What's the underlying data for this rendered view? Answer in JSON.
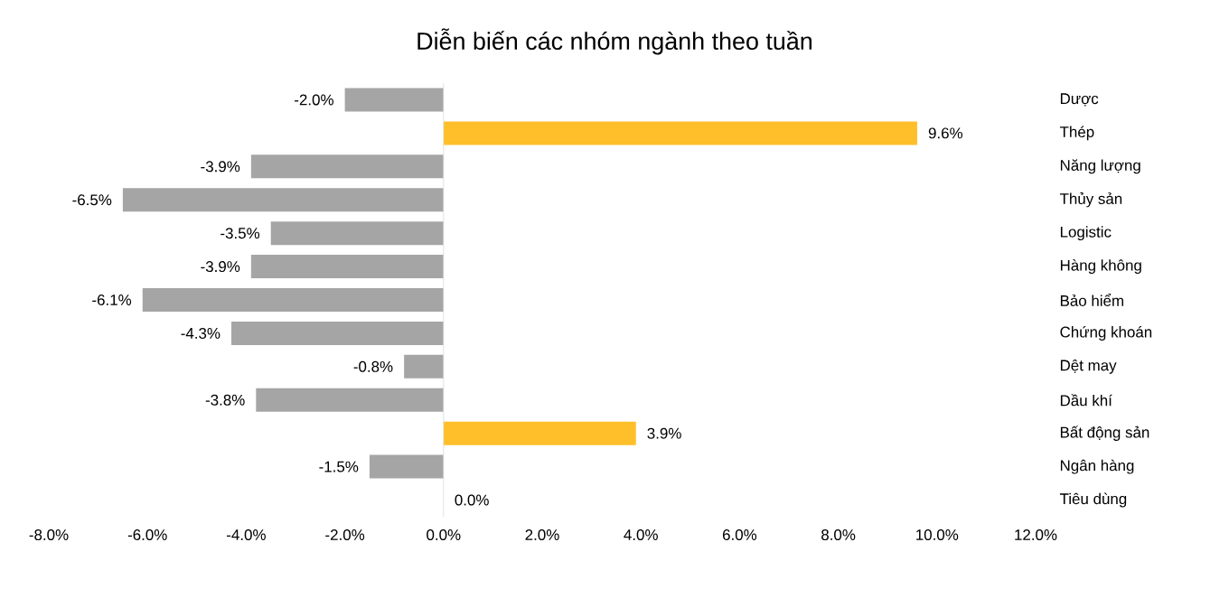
{
  "chart_data": {
    "type": "bar",
    "orientation": "horizontal",
    "title": "Diễn biến các nhóm ngành theo tuần",
    "categories": [
      "Dược",
      "Thép",
      "Năng lượng",
      "Thủy sản",
      "Logistic",
      "Hàng không",
      "Bảo hiểm",
      "Chứng khoán",
      "Dệt may",
      "Dầu khí",
      "Bất động sản",
      "Ngân hàng",
      "Tiêu dùng"
    ],
    "values": [
      -2.0,
      9.6,
      -3.9,
      -6.5,
      -3.5,
      -3.9,
      -6.1,
      -4.3,
      -0.8,
      -3.8,
      3.9,
      -1.5,
      0.0
    ],
    "colors": [
      "#a5a5a5",
      "#ffbf2a",
      "#a5a5a5",
      "#a5a5a5",
      "#a5a5a5",
      "#a5a5a5",
      "#a5a5a5",
      "#a5a5a5",
      "#a5a5a5",
      "#a5a5a5",
      "#ffbf2a",
      "#a5a5a5",
      "#a5a5a5"
    ],
    "value_labels": [
      "-2.0%",
      "9.6%",
      "-3.9%",
      "-6.5%",
      "-3.5%",
      "-3.9%",
      "-6.1%",
      "-4.3%",
      "-0.8%",
      "-3.8%",
      "3.9%",
      "-1.5%",
      "0.0%"
    ],
    "xlim": [
      -8,
      12
    ],
    "xticks": [
      {
        "value": -8,
        "label": "-8.0%"
      },
      {
        "value": -6,
        "label": "-6.0%"
      },
      {
        "value": -4,
        "label": "-4.0%"
      },
      {
        "value": -2,
        "label": "-2.0%"
      },
      {
        "value": 0,
        "label": "0.0%"
      },
      {
        "value": 2,
        "label": "2.0%"
      },
      {
        "value": 4,
        "label": "4.0%"
      },
      {
        "value": 6,
        "label": "6.0%"
      },
      {
        "value": 8,
        "label": "8.0%"
      },
      {
        "value": 10,
        "label": "10.0%"
      },
      {
        "value": 12,
        "label": "12.0%"
      }
    ],
    "ref_lines": [
      {
        "axis": "x",
        "value": 0,
        "color": "#d9d9d9"
      }
    ]
  }
}
